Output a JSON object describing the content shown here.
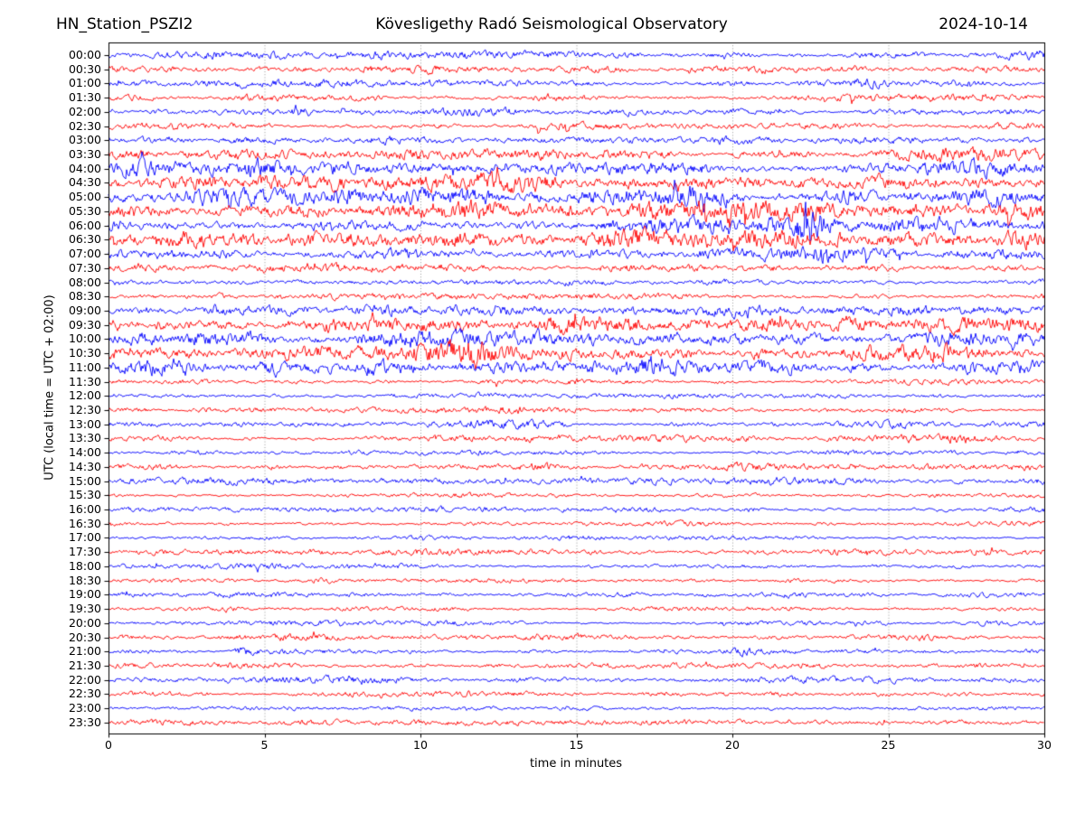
{
  "header": {
    "title_left": "HN_Station_PSZI2",
    "title_center": "Kövesligethy Radó Seismological Observatory",
    "title_right": "2024-10-14"
  },
  "chart_data": {
    "type": "line",
    "subtype": "helicorder-seismogram-drum-plot",
    "title": "HN_Station_PSZI2 — Kövesligethy Radó Seismological Observatory — 2024-10-14",
    "xlabel": "time in minutes",
    "ylabel": "UTC (local time = UTC + 02:00)",
    "xlim": [
      0,
      30
    ],
    "xticks": [
      0,
      5,
      10,
      15,
      20,
      25,
      30
    ],
    "grid": "vertical dotted gridlines at 5-minute intervals",
    "legend": "none",
    "colors": {
      "trace_blue": "#0000ff",
      "trace_red": "#ff0000",
      "grid": "#808080",
      "axis": "#000000",
      "background": "#ffffff"
    },
    "row_note": "48 half-hour traces, colors alternate blue/red; amp = approximate peak amplitude in px read from plot; events = [minute, width_min, extra_gain] amplitude bursts",
    "rows": [
      {
        "label": "00:00",
        "color": "blue",
        "amp": 3.6,
        "events": []
      },
      {
        "label": "00:30",
        "color": "red",
        "amp": 3.8,
        "events": []
      },
      {
        "label": "01:00",
        "color": "blue",
        "amp": 3.4,
        "events": []
      },
      {
        "label": "01:30",
        "color": "red",
        "amp": 3.4,
        "events": []
      },
      {
        "label": "02:00",
        "color": "blue",
        "amp": 3.2,
        "events": [
          [
            6.2,
            0.3,
            1.6
          ]
        ]
      },
      {
        "label": "02:30",
        "color": "red",
        "amp": 3.8,
        "events": []
      },
      {
        "label": "03:00",
        "color": "blue",
        "amp": 3.2,
        "events": []
      },
      {
        "label": "03:30",
        "color": "red",
        "amp": 5.0,
        "events": [
          [
            2.6,
            0.3,
            1.2
          ]
        ]
      },
      {
        "label": "04:00",
        "color": "blue",
        "amp": 6.0,
        "events": []
      },
      {
        "label": "04:30",
        "color": "red",
        "amp": 7.5,
        "events": []
      },
      {
        "label": "05:00",
        "color": "blue",
        "amp": 7.0,
        "events": []
      },
      {
        "label": "05:30",
        "color": "red",
        "amp": 8.0,
        "events": []
      },
      {
        "label": "06:00",
        "color": "blue",
        "amp": 7.5,
        "events": [
          [
            22.4,
            0.4,
            2.0
          ]
        ]
      },
      {
        "label": "06:30",
        "color": "red",
        "amp": 7.0,
        "events": []
      },
      {
        "label": "07:00",
        "color": "blue",
        "amp": 5.5,
        "events": []
      },
      {
        "label": "07:30",
        "color": "red",
        "amp": 4.5,
        "events": []
      },
      {
        "label": "08:00",
        "color": "blue",
        "amp": 3.0,
        "events": []
      },
      {
        "label": "08:30",
        "color": "red",
        "amp": 3.6,
        "events": []
      },
      {
        "label": "09:00",
        "color": "blue",
        "amp": 4.0,
        "events": [
          [
            20.3,
            0.5,
            0.9
          ]
        ]
      },
      {
        "label": "09:30",
        "color": "red",
        "amp": 6.5,
        "events": [
          [
            7.5,
            1.2,
            0.5
          ],
          [
            28.5,
            1.0,
            0.6
          ]
        ]
      },
      {
        "label": "10:00",
        "color": "blue",
        "amp": 6.5,
        "events": [
          [
            3.5,
            1.0,
            0.6
          ]
        ]
      },
      {
        "label": "10:30",
        "color": "red",
        "amp": 7.5,
        "events": [
          [
            11.5,
            1.2,
            0.5
          ]
        ]
      },
      {
        "label": "11:00",
        "color": "blue",
        "amp": 7.0,
        "events": [
          [
            5.2,
            0.8,
            0.6
          ],
          [
            17.2,
            0.8,
            0.7
          ]
        ]
      },
      {
        "label": "11:30",
        "color": "red",
        "amp": 2.6,
        "events": []
      },
      {
        "label": "12:00",
        "color": "blue",
        "amp": 2.2,
        "events": []
      },
      {
        "label": "12:30",
        "color": "red",
        "amp": 2.8,
        "events": []
      },
      {
        "label": "13:00",
        "color": "blue",
        "amp": 3.2,
        "events": []
      },
      {
        "label": "13:30",
        "color": "red",
        "amp": 3.0,
        "events": [
          [
            27.3,
            0.4,
            0.9
          ]
        ]
      },
      {
        "label": "14:00",
        "color": "blue",
        "amp": 2.1,
        "events": []
      },
      {
        "label": "14:30",
        "color": "red",
        "amp": 3.0,
        "events": [
          [
            26.3,
            0.3,
            1.1
          ]
        ]
      },
      {
        "label": "15:00",
        "color": "blue",
        "amp": 2.8,
        "events": []
      },
      {
        "label": "15:30",
        "color": "red",
        "amp": 2.1,
        "events": []
      },
      {
        "label": "16:00",
        "color": "blue",
        "amp": 2.1,
        "events": [
          [
            20.6,
            0.4,
            1.8
          ]
        ]
      },
      {
        "label": "16:30",
        "color": "red",
        "amp": 2.1,
        "events": []
      },
      {
        "label": "17:00",
        "color": "blue",
        "amp": 2.2,
        "events": []
      },
      {
        "label": "17:30",
        "color": "red",
        "amp": 2.6,
        "events": []
      },
      {
        "label": "18:00",
        "color": "blue",
        "amp": 2.3,
        "events": []
      },
      {
        "label": "18:30",
        "color": "red",
        "amp": 2.1,
        "events": []
      },
      {
        "label": "19:00",
        "color": "blue",
        "amp": 2.6,
        "events": []
      },
      {
        "label": "19:30",
        "color": "red",
        "amp": 1.9,
        "events": []
      },
      {
        "label": "20:00",
        "color": "blue",
        "amp": 1.9,
        "events": []
      },
      {
        "label": "20:30",
        "color": "red",
        "amp": 2.3,
        "events": []
      },
      {
        "label": "21:00",
        "color": "blue",
        "amp": 2.3,
        "events": [
          [
            4.3,
            0.4,
            1.7
          ],
          [
            20.5,
            0.5,
            1.7
          ]
        ]
      },
      {
        "label": "21:30",
        "color": "red",
        "amp": 2.6,
        "events": [
          [
            5.6,
            0.4,
            1.0
          ]
        ]
      },
      {
        "label": "22:00",
        "color": "blue",
        "amp": 2.9,
        "events": []
      },
      {
        "label": "22:30",
        "color": "red",
        "amp": 2.3,
        "events": []
      },
      {
        "label": "23:00",
        "color": "blue",
        "amp": 1.9,
        "events": []
      },
      {
        "label": "23:30",
        "color": "red",
        "amp": 2.6,
        "events": []
      }
    ]
  }
}
